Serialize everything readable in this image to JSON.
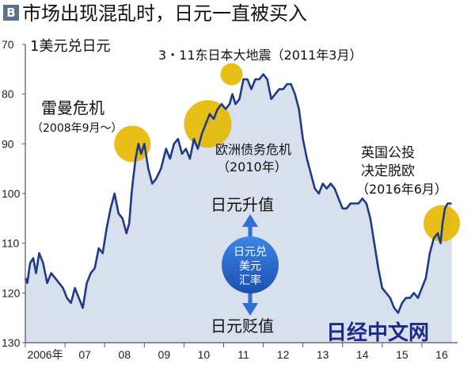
{
  "header": {
    "badge": "B",
    "title": "市场出现混乱时，日元一直被买入"
  },
  "chart_data": {
    "type": "line",
    "title": "市场出现混乱时，日元一直被买入",
    "ylabel": "1美元兑日元",
    "y_inverted": true,
    "ylim": [
      70,
      130
    ],
    "yticks": [
      70,
      80,
      90,
      100,
      110,
      120,
      130
    ],
    "xlim": [
      2006.0,
      2016.9
    ],
    "xtick_labels": [
      "2006年",
      "07",
      "08",
      "09",
      "10",
      "11",
      "12",
      "13",
      "14",
      "15",
      "16"
    ],
    "xtick_years": [
      2006,
      2007,
      2008,
      2009,
      2010,
      2011,
      2012,
      2013,
      2014,
      2015,
      2016
    ],
    "grid": false,
    "series": [
      {
        "color": "#1f3a8a",
        "x": [
          2006.0,
          2006.05,
          2006.12,
          2006.2,
          2006.27,
          2006.35,
          2006.45,
          2006.55,
          2006.65,
          2006.75,
          2006.85,
          2006.95,
          2007.05,
          2007.15,
          2007.25,
          2007.35,
          2007.45,
          2007.55,
          2007.65,
          2007.75,
          2007.85,
          2007.95,
          2008.05,
          2008.15,
          2008.25,
          2008.35,
          2008.45,
          2008.55,
          2008.62,
          2008.68,
          2008.72,
          2008.78,
          2008.85,
          2008.92,
          2009.0,
          2009.1,
          2009.2,
          2009.3,
          2009.42,
          2009.55,
          2009.65,
          2009.75,
          2009.85,
          2009.95,
          2010.05,
          2010.15,
          2010.25,
          2010.35,
          2010.45,
          2010.55,
          2010.65,
          2010.75,
          2010.85,
          2010.95,
          2011.05,
          2011.15,
          2011.22,
          2011.3,
          2011.4,
          2011.5,
          2011.6,
          2011.7,
          2011.8,
          2011.9,
          2012.0,
          2012.1,
          2012.2,
          2012.3,
          2012.4,
          2012.5,
          2012.6,
          2012.7,
          2012.8,
          2012.9,
          2013.0,
          2013.1,
          2013.2,
          2013.3,
          2013.4,
          2013.5,
          2013.6,
          2013.7,
          2013.8,
          2013.9,
          2014.0,
          2014.1,
          2014.2,
          2014.3,
          2014.4,
          2014.5,
          2014.6,
          2014.7,
          2014.8,
          2014.9,
          2015.0,
          2015.1,
          2015.2,
          2015.3,
          2015.4,
          2015.5,
          2015.6,
          2015.7,
          2015.8,
          2015.9,
          2016.0,
          2016.1,
          2016.2,
          2016.3,
          2016.4,
          2016.47,
          2016.52,
          2016.58,
          2016.65,
          2016.75
        ],
        "y": [
          117,
          118,
          114,
          113,
          116,
          112,
          114,
          118,
          116,
          117,
          118,
          119,
          121,
          122,
          119,
          121,
          123,
          118,
          116,
          115,
          111,
          112,
          107,
          103,
          100,
          104,
          105,
          108,
          106,
          100,
          97,
          93,
          90,
          92,
          90,
          95,
          98,
          97,
          95,
          91,
          93,
          90,
          89,
          92,
          91,
          93,
          89,
          91,
          88,
          86,
          84,
          85,
          83,
          82,
          83,
          82,
          80,
          82,
          81,
          77,
          77,
          79,
          77,
          77,
          76,
          77,
          81,
          80,
          79,
          79,
          78,
          78,
          80,
          83,
          89,
          93,
          96,
          99,
          100,
          98,
          99,
          98,
          99,
          101,
          103,
          103,
          102,
          102,
          102,
          101,
          102,
          105,
          110,
          115,
          119,
          120,
          121,
          123,
          124,
          122,
          121,
          121,
          120,
          121,
          119,
          117,
          112,
          109,
          108,
          110,
          106,
          103,
          102,
          102
        ]
      }
    ],
    "highlights": [
      {
        "x": 2008.7,
        "y": 90
      },
      {
        "x": 2010.6,
        "y": 86
      },
      {
        "x": 2011.2,
        "y": 76
      },
      {
        "x": 2016.5,
        "y": 106
      }
    ],
    "annotations": {
      "lehman": "雷曼危机",
      "lehman_date": "（2008年9月～）",
      "quake": "3・11东日本大地震（2011年3月）",
      "euro_1": "欧洲债务危机",
      "euro_2": "（2010年）",
      "brexit_1": "英国公投",
      "brexit_2": "决定脱欧",
      "brexit_3": "（2016年6月）",
      "up_label": "日元升值",
      "down_label": "日元贬值",
      "center_1": "日元兑",
      "center_2": "美元",
      "center_3": "汇率"
    },
    "watermark": "日经中文网",
    "colors": {
      "line": "#1f3a8a",
      "area": "#d8dfed",
      "highlight": "#e6b800",
      "arrow": "#2f6fd6"
    }
  }
}
